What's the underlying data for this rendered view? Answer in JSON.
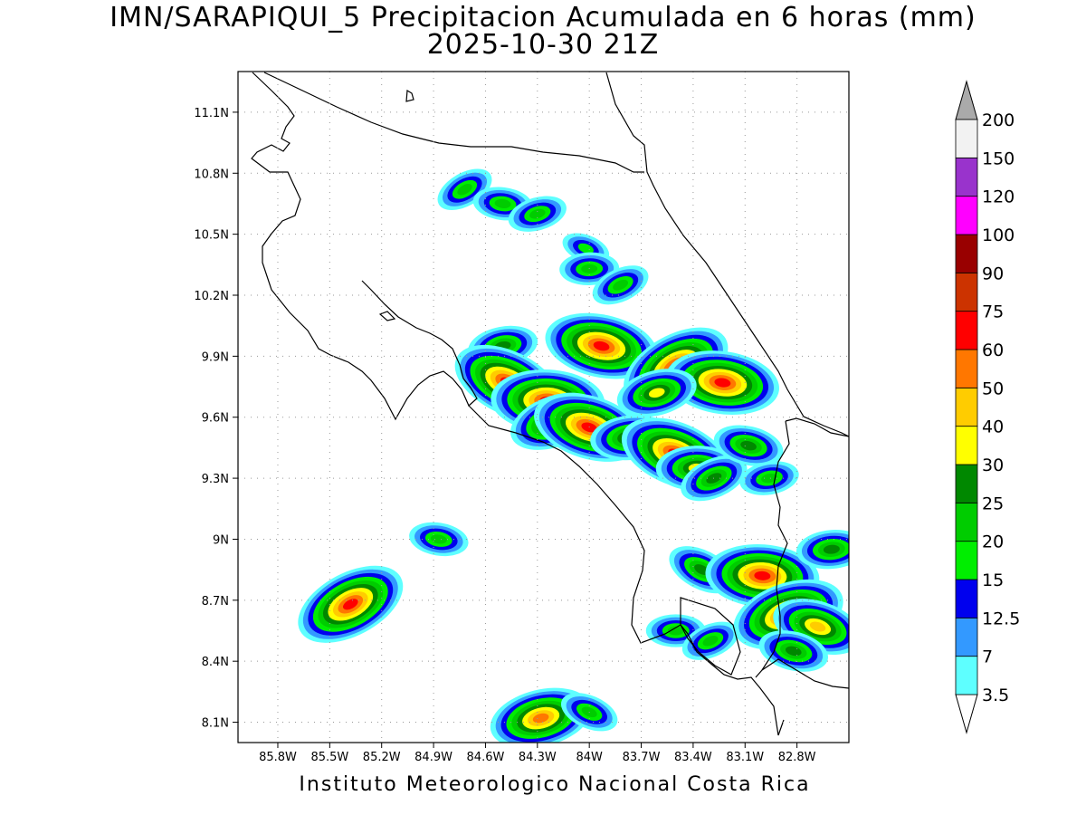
{
  "title": {
    "line1": "IMN/SARAPIQUI_5 Precipitacion Acumulada en 6 horas (mm)",
    "line2": "2025-10-30 21Z"
  },
  "footer": "Instituto Meteorologico Nacional Costa Rica",
  "map": {
    "lon_range": [
      -86.03,
      -82.5
    ],
    "lat_range": [
      8.0,
      11.3
    ],
    "x_ticks": [
      "85.8W",
      "85.5W",
      "85.2W",
      "84.9W",
      "84.6W",
      "84.3W",
      "84W",
      "83.7W",
      "83.4W",
      "83.1W",
      "82.8W"
    ],
    "x_tick_values": [
      -85.8,
      -85.5,
      -85.2,
      -84.9,
      -84.6,
      -84.3,
      -84.0,
      -83.7,
      -83.4,
      -83.1,
      -82.8
    ],
    "y_ticks": [
      "8.1N",
      "8.4N",
      "8.7N",
      "9N",
      "9.3N",
      "9.6N",
      "9.9N",
      "10.2N",
      "10.5N",
      "10.8N",
      "11.1N"
    ],
    "y_tick_values": [
      8.1,
      8.4,
      8.7,
      9.0,
      9.3,
      9.6,
      9.9,
      10.2,
      10.5,
      10.8,
      11.1
    ],
    "grid": "dotted"
  },
  "colorbar": {
    "labels": [
      "3.5",
      "7",
      "12.5",
      "15",
      "20",
      "25",
      "30",
      "40",
      "50",
      "60",
      "75",
      "90",
      "100",
      "120",
      "150",
      "200"
    ],
    "colors": [
      "#5effff",
      "#3399ff",
      "#0000ee",
      "#00ee00",
      "#00cc00",
      "#008800",
      "#ffff00",
      "#ffcc00",
      "#ff7700",
      "#ff0000",
      "#cc3300",
      "#990000",
      "#ff00ff",
      "#9933cc",
      "#f2f2f2"
    ],
    "arrow_top_color": "#aaaaaa",
    "arrow_bottom_color": "#ffffff"
  },
  "precip_cells": [
    {
      "lon": -84.72,
      "lat": 10.72,
      "level": 4
    },
    {
      "lon": -84.5,
      "lat": 10.65,
      "level": 4
    },
    {
      "lon": -84.3,
      "lat": 10.6,
      "level": 4
    },
    {
      "lon": -84.02,
      "lat": 10.43,
      "level": 3
    },
    {
      "lon": -84.0,
      "lat": 10.33,
      "level": 4
    },
    {
      "lon": -83.82,
      "lat": 10.25,
      "level": 4
    },
    {
      "lon": -83.93,
      "lat": 9.95,
      "level": 9
    },
    {
      "lon": -84.5,
      "lat": 9.95,
      "level": 5
    },
    {
      "lon": -84.47,
      "lat": 9.77,
      "level": 9
    },
    {
      "lon": -84.24,
      "lat": 9.68,
      "level": 9
    },
    {
      "lon": -84.2,
      "lat": 9.58,
      "level": 7
    },
    {
      "lon": -84.0,
      "lat": 9.55,
      "level": 9
    },
    {
      "lon": -83.76,
      "lat": 9.5,
      "level": 6
    },
    {
      "lon": -83.5,
      "lat": 9.85,
      "level": 9
    },
    {
      "lon": -83.23,
      "lat": 9.77,
      "level": 9
    },
    {
      "lon": -83.61,
      "lat": 9.72,
      "level": 6
    },
    {
      "lon": -83.5,
      "lat": 9.42,
      "level": 9
    },
    {
      "lon": -83.38,
      "lat": 9.35,
      "level": 6
    },
    {
      "lon": -83.28,
      "lat": 9.3,
      "level": 5
    },
    {
      "lon": -83.08,
      "lat": 9.46,
      "level": 5
    },
    {
      "lon": -82.96,
      "lat": 9.3,
      "level": 4
    },
    {
      "lon": -83.35,
      "lat": 8.85,
      "level": 5
    },
    {
      "lon": -83.0,
      "lat": 8.82,
      "level": 9
    },
    {
      "lon": -82.85,
      "lat": 8.63,
      "level": 9
    },
    {
      "lon": -82.68,
      "lat": 8.57,
      "level": 7
    },
    {
      "lon": -82.6,
      "lat": 8.95,
      "level": 5
    },
    {
      "lon": -85.38,
      "lat": 8.68,
      "level": 9
    },
    {
      "lon": -84.87,
      "lat": 9.0,
      "level": 4
    },
    {
      "lon": -84.28,
      "lat": 8.12,
      "level": 8
    },
    {
      "lon": -84.0,
      "lat": 8.15,
      "level": 4
    },
    {
      "lon": -83.5,
      "lat": 8.55,
      "level": 4
    },
    {
      "lon": -83.3,
      "lat": 8.5,
      "level": 4
    },
    {
      "lon": -82.82,
      "lat": 8.45,
      "level": 5
    }
  ]
}
